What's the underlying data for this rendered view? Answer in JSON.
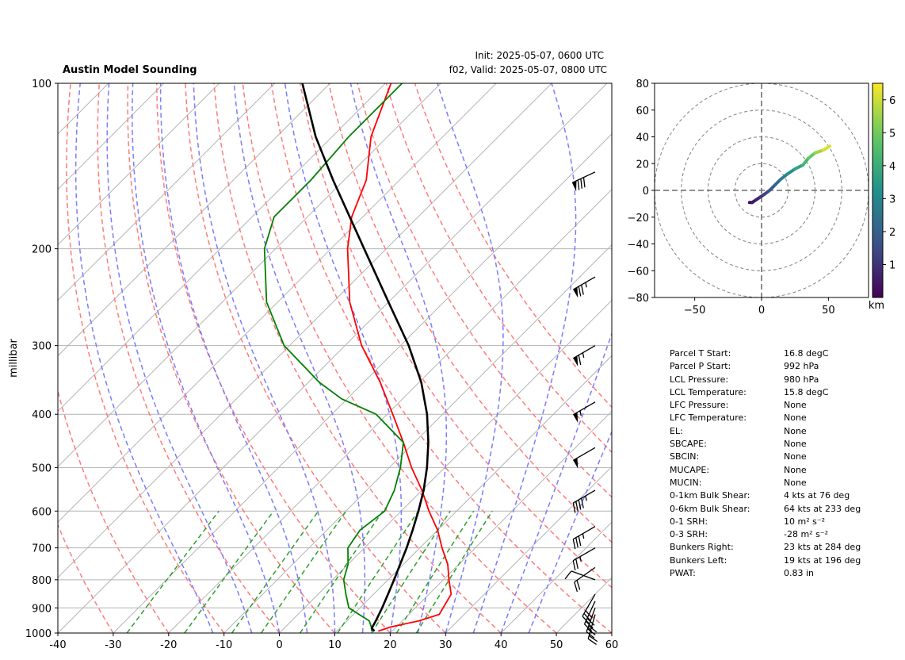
{
  "header": {
    "title": "Austin Model Sounding",
    "init": "Init: 2025-05-07, 0600 UTC",
    "valid": "f02, Valid: 2025-05-07, 0800 UTC"
  },
  "colors": {
    "temperature": "#ff0000",
    "dewpoint": "#008000",
    "parcel": "#000000",
    "dry_adiabats": "#ff7b7b",
    "moist_adiabats": "#7b7bff",
    "mixing_ratio": "#2ca02c",
    "isobars": "#b3b3b3",
    "isotherms": "#b3b3b3",
    "freezing_isotherm": "#7f3fbf"
  },
  "chart_data": [
    {
      "type": "line",
      "subtype": "skew-t log-p sounding",
      "title": "Austin Model Sounding",
      "ylabel": "millibar",
      "xlabel": "",
      "xlim": [
        -40,
        60
      ],
      "ylim": [
        1000,
        100
      ],
      "y_log_scale": true,
      "grid": true,
      "x_ticks": [
        -40,
        -30,
        -20,
        -10,
        0,
        10,
        20,
        30,
        40,
        50,
        60
      ],
      "y_ticks": [
        1000,
        900,
        800,
        700,
        600,
        500,
        400,
        300,
        200,
        100
      ],
      "series": [
        {
          "key": "temperature",
          "pressure": [
            992,
            975,
            950,
            925,
            900,
            850,
            800,
            750,
            700,
            650,
            600,
            550,
            500,
            450,
            400,
            350,
            300,
            250,
            200,
            175,
            150,
            125,
            100
          ],
          "values": [
            17.5,
            19,
            23,
            25.5,
            25,
            24,
            21,
            18,
            14,
            10,
            5,
            0,
            -6,
            -12,
            -19,
            -27,
            -37,
            -47,
            -57,
            -62,
            -66,
            -73,
            -79
          ]
        },
        {
          "key": "dewpoint",
          "pressure": [
            992,
            975,
            950,
            925,
            900,
            850,
            800,
            750,
            700,
            650,
            600,
            550,
            500,
            450,
            400,
            375,
            350,
            300,
            250,
            200,
            175,
            150,
            125,
            100
          ],
          "values": [
            16.3,
            15.5,
            14,
            11,
            8,
            5,
            2,
            0,
            -3,
            -4,
            -3,
            -5,
            -8,
            -12,
            -22,
            -31,
            -38,
            -51,
            -62,
            -72,
            -76,
            -76,
            -77,
            -77
          ]
        },
        {
          "key": "parcel",
          "pressure": [
            992,
            980,
            950,
            900,
            850,
            800,
            750,
            700,
            650,
            600,
            550,
            500,
            450,
            400,
            350,
            300,
            250,
            200,
            150,
            125,
            100
          ],
          "values": [
            16.8,
            15.8,
            15.2,
            14,
            12.6,
            11.1,
            9.4,
            7.6,
            5.5,
            3.1,
            0.3,
            -3.2,
            -7.5,
            -12.8,
            -19.6,
            -28.5,
            -40,
            -54,
            -72,
            -83,
            -95
          ]
        }
      ],
      "dry_adiabats_theta_c": [
        -30,
        -20,
        -10,
        0,
        10,
        20,
        30,
        40,
        50,
        60,
        70,
        80,
        90,
        100,
        110
      ],
      "moist_adiabats_start_c": [
        -12,
        -5,
        0,
        5,
        10,
        15,
        20,
        25,
        30,
        35,
        40,
        45
      ],
      "mixing_ratio_lines_gkg": [
        0.4,
        1,
        2,
        3,
        5,
        8,
        12,
        16,
        20
      ],
      "wind_barbs": [
        {
          "pressure": 925,
          "speed_kt": 23,
          "direction_deg": 196
        },
        {
          "pressure": 900,
          "speed_kt": 28,
          "direction_deg": 200
        },
        {
          "pressure": 875,
          "speed_kt": 30,
          "direction_deg": 205
        },
        {
          "pressure": 850,
          "speed_kt": 32,
          "direction_deg": 210
        },
        {
          "pressure": 800,
          "speed_kt": 10,
          "direction_deg": 290
        },
        {
          "pressure": 760,
          "speed_kt": 20,
          "direction_deg": 235
        },
        {
          "pressure": 700,
          "speed_kt": 25,
          "direction_deg": 240
        },
        {
          "pressure": 640,
          "speed_kt": 35,
          "direction_deg": 240
        },
        {
          "pressure": 550,
          "speed_kt": 45,
          "direction_deg": 240
        },
        {
          "pressure": 460,
          "speed_kt": 50,
          "direction_deg": 240
        },
        {
          "pressure": 380,
          "speed_kt": 55,
          "direction_deg": 240
        },
        {
          "pressure": 300,
          "speed_kt": 65,
          "direction_deg": 240
        },
        {
          "pressure": 225,
          "speed_kt": 75,
          "direction_deg": 240
        },
        {
          "pressure": 145,
          "speed_kt": 80,
          "direction_deg": 245
        }
      ]
    },
    {
      "type": "line",
      "subtype": "hodograph",
      "xlim": [
        -80,
        80
      ],
      "ylim": [
        -80,
        80
      ],
      "x_ticks": [
        -50,
        0,
        50
      ],
      "y_ticks": [
        -80,
        -60,
        -40,
        -20,
        0,
        20,
        40,
        60,
        80
      ],
      "rings": [
        20,
        40,
        60,
        80
      ],
      "colorbar": {
        "label": "km",
        "ticks": [
          1,
          2,
          3,
          4,
          5,
          6
        ],
        "range": [
          0,
          6.5
        ],
        "colormap": "viridis"
      },
      "u": [
        -9,
        -7,
        -4,
        -1,
        2,
        6,
        10,
        14,
        19,
        25,
        31,
        35,
        40,
        46,
        51
      ],
      "v": [
        -9,
        -9,
        -7,
        -5,
        -3,
        0,
        4,
        8,
        12,
        16,
        19,
        24,
        28,
        30,
        33
      ],
      "height_km": [
        0,
        0.3,
        0.6,
        0.9,
        1.2,
        1.6,
        2.0,
        2.5,
        3.0,
        3.5,
        4.0,
        4.6,
        5.2,
        5.8,
        6.4
      ]
    }
  ],
  "params": [
    {
      "label": "Parcel T Start:",
      "value": "16.8 degC"
    },
    {
      "label": "Parcel P Start:",
      "value": "992 hPa"
    },
    {
      "label": "LCL Pressure:",
      "value": "980 hPa"
    },
    {
      "label": "LCL Temperature:",
      "value": "15.8 degC"
    },
    {
      "label": "LFC Pressure:",
      "value": "None"
    },
    {
      "label": "LFC Temperature:",
      "value": "None"
    },
    {
      "label": "EL:",
      "value": "None"
    },
    {
      "label": "SBCAPE:",
      "value": "None"
    },
    {
      "label": "SBCIN:",
      "value": "None"
    },
    {
      "label": "MUCAPE:",
      "value": "None"
    },
    {
      "label": "MUCIN:",
      "value": "None"
    },
    {
      "label": "0-1km Bulk Shear:",
      "value": "4 kts at 76 deg"
    },
    {
      "label": "0-6km Bulk Shear:",
      "value": "64 kts at 233 deg"
    },
    {
      "label": "0-1 SRH:",
      "value": "10 m² s⁻²"
    },
    {
      "label": "0-3 SRH:",
      "value": "-28 m² s⁻²"
    },
    {
      "label": "Bunkers Right:",
      "value": "23 kts at 284 deg"
    },
    {
      "label": "Bunkers Left:",
      "value": "19 kts at 196 deg"
    },
    {
      "label": "PWAT:",
      "value": "0.83 in"
    }
  ]
}
